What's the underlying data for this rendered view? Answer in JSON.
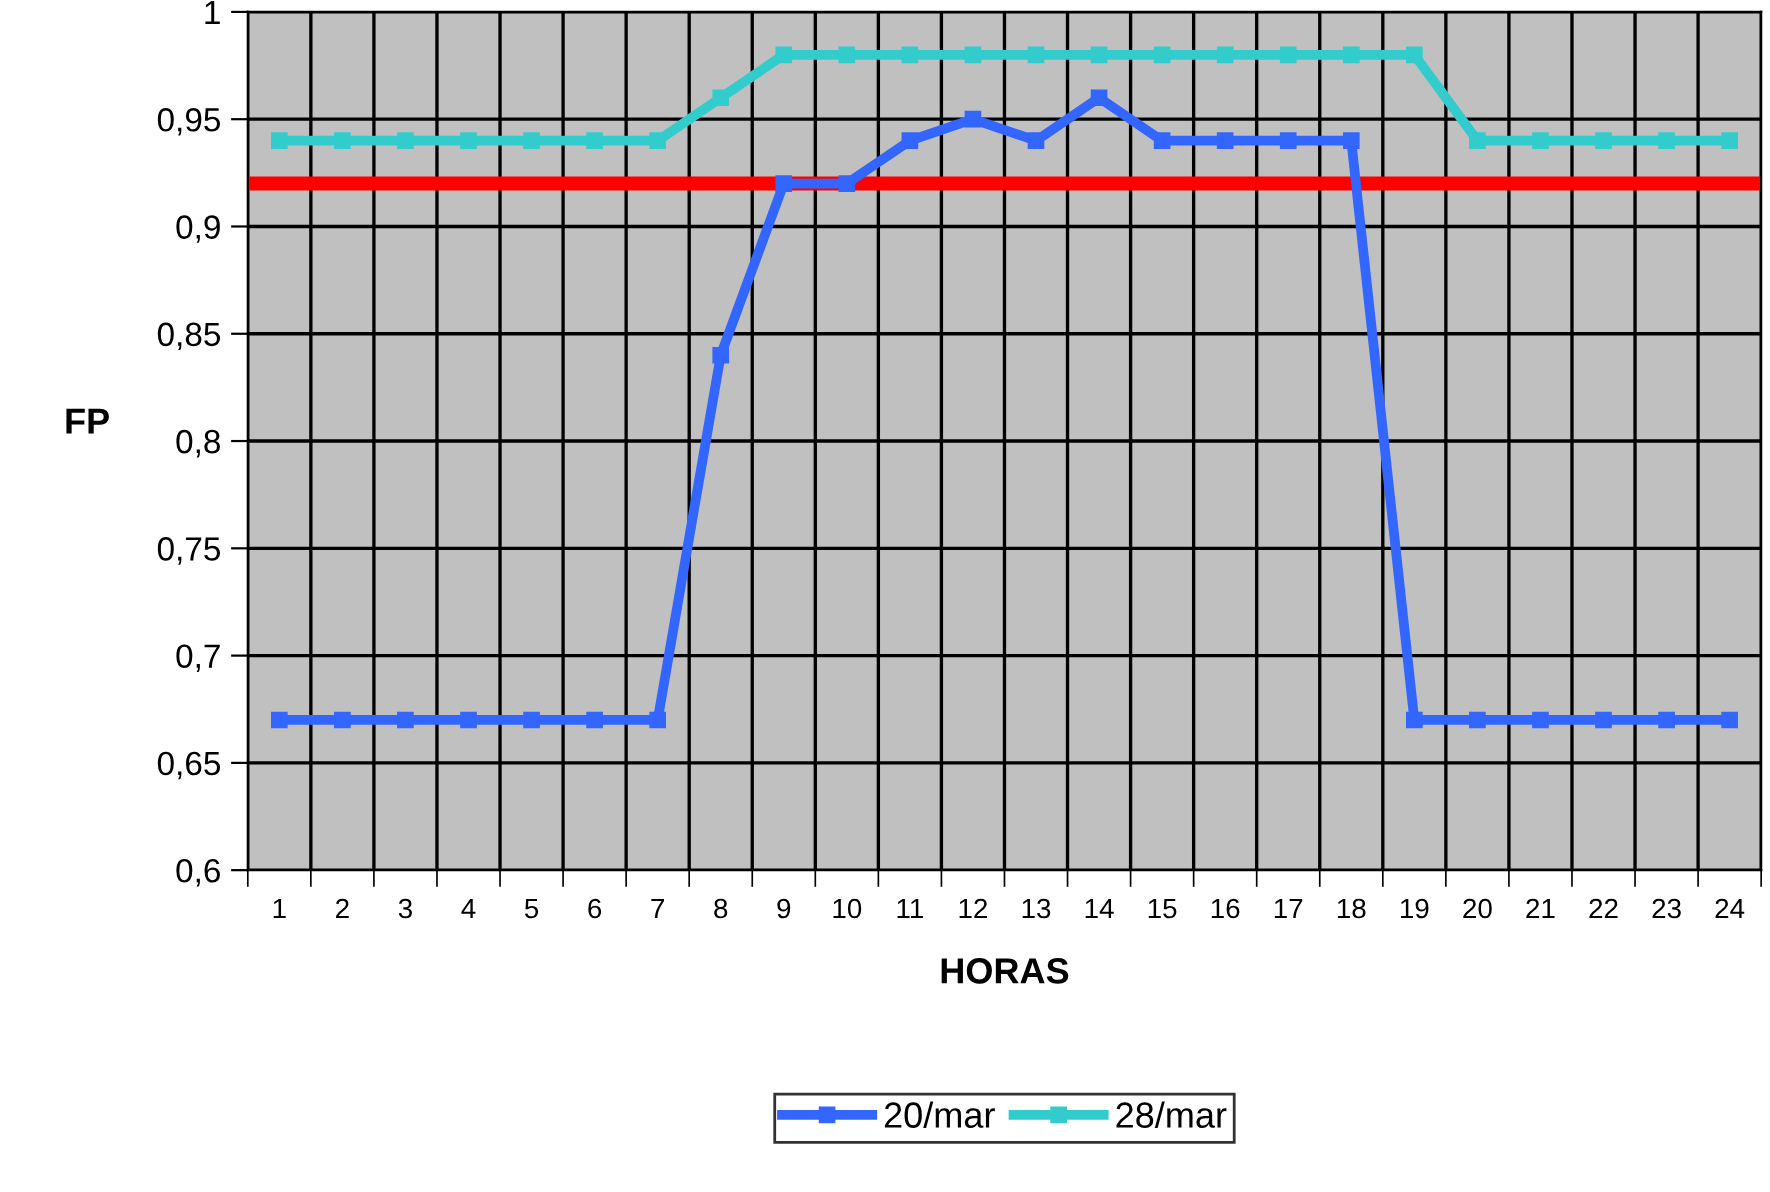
{
  "chart_data": {
    "type": "line",
    "xlabel": "HORAS",
    "ylabel": "FP",
    "categories": [
      "1",
      "2",
      "3",
      "4",
      "5",
      "6",
      "7",
      "8",
      "9",
      "10",
      "11",
      "12",
      "13",
      "14",
      "15",
      "16",
      "17",
      "18",
      "19",
      "20",
      "21",
      "22",
      "23",
      "24"
    ],
    "series": [
      {
        "name": "20/mar",
        "color": "#3366ff",
        "values": [
          0.67,
          0.67,
          0.67,
          0.67,
          0.67,
          0.67,
          0.67,
          0.84,
          0.92,
          0.92,
          0.94,
          0.95,
          0.94,
          0.96,
          0.94,
          0.94,
          0.94,
          0.94,
          0.67,
          0.67,
          0.67,
          0.67,
          0.67,
          0.67
        ]
      },
      {
        "name": "28/mar",
        "color": "#33cccc",
        "values": [
          0.94,
          0.94,
          0.94,
          0.94,
          0.94,
          0.94,
          0.94,
          0.96,
          0.98,
          0.98,
          0.98,
          0.98,
          0.98,
          0.98,
          0.98,
          0.98,
          0.98,
          0.98,
          0.98,
          0.94,
          0.94,
          0.94,
          0.94,
          0.94
        ]
      }
    ],
    "ylim": [
      0.6,
      1
    ],
    "yticks": [
      {
        "value": 0.6,
        "label": "0,6"
      },
      {
        "value": 0.65,
        "label": "0,65"
      },
      {
        "value": 0.7,
        "label": "0,7"
      },
      {
        "value": 0.75,
        "label": "0,75"
      },
      {
        "value": 0.8,
        "label": "0,8"
      },
      {
        "value": 0.85,
        "label": "0,85"
      },
      {
        "value": 0.9,
        "label": "0,9"
      },
      {
        "value": 0.95,
        "label": "0,95"
      },
      {
        "value": 1,
        "label": "1"
      }
    ],
    "ref_lines": [
      {
        "axis": "y",
        "value": 0.92,
        "color": "#ff0000"
      }
    ],
    "grid": true,
    "legend": "bottom",
    "marker": "square",
    "line_style": "solid"
  }
}
